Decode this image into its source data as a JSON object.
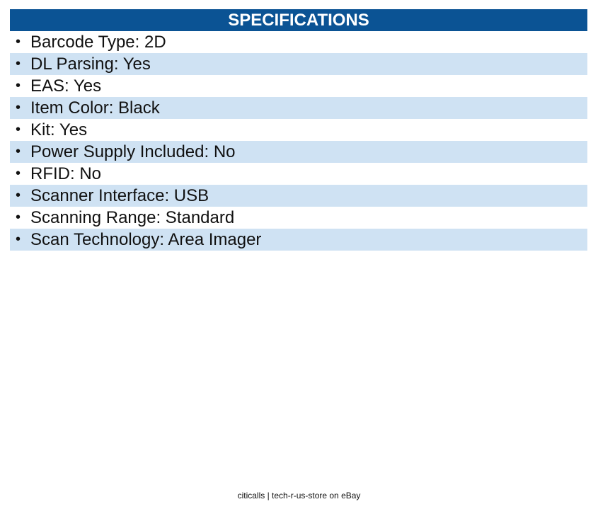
{
  "specifications": {
    "title": "SPECIFICATIONS",
    "items": [
      "Barcode Type: 2D",
      "DL Parsing: Yes",
      "EAS: Yes",
      "Item Color: Black",
      "Kit: Yes",
      "Power Supply Included: No",
      "RFID: No",
      "Scanner Interface: USB",
      "Scanning Range: Standard",
      "Scan Technology: Area Imager"
    ]
  },
  "footer": {
    "text": "citicalls | tech-r-us-store on eBay"
  }
}
